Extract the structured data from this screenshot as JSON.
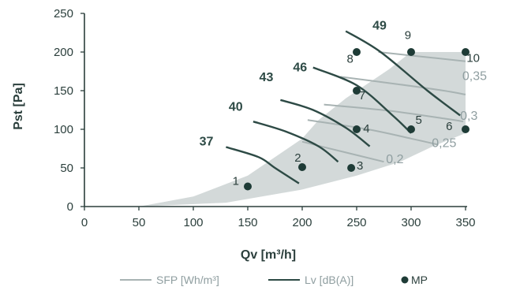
{
  "chart_data": {
    "type": "line",
    "xlabel": "Qv [m³/h]",
    "ylabel": "Pst [Pa]",
    "xlim": [
      0,
      350
    ],
    "ylim": [
      0,
      250
    ],
    "x_ticks": [
      "0",
      "50",
      "100",
      "150",
      "200",
      "250",
      "300",
      "350"
    ],
    "y_ticks": [
      "0",
      "50",
      "100",
      "150",
      "200",
      "250"
    ],
    "grid": false,
    "legend_position": "bottom",
    "operating_area": {
      "upper": [
        [
          50,
          0
        ],
        [
          100,
          13
        ],
        [
          150,
          40
        ],
        [
          200,
          88
        ],
        [
          215,
          112
        ],
        [
          240,
          140
        ],
        [
          280,
          178
        ],
        [
          300,
          200
        ],
        [
          350,
          200
        ]
      ],
      "lower": [
        [
          50,
          0
        ],
        [
          130,
          5
        ],
        [
          200,
          22
        ],
        [
          250,
          40
        ],
        [
          290,
          58
        ],
        [
          320,
          78
        ],
        [
          350,
          95
        ]
      ]
    },
    "sfp_lines": [
      {
        "label": "0,2",
        "points": [
          [
            200,
            84
          ],
          [
            240,
            70
          ],
          [
            275,
            58
          ]
        ]
      },
      {
        "label": "0,25",
        "points": [
          [
            205,
            112
          ],
          [
            260,
            100
          ],
          [
            300,
            88
          ],
          [
            325,
            80
          ]
        ]
      },
      {
        "label": "0,3",
        "points": [
          [
            220,
            132
          ],
          [
            280,
            124
          ],
          [
            330,
            114
          ],
          [
            348,
            110
          ]
        ]
      },
      {
        "label": "0,35",
        "points": [
          [
            235,
            168
          ],
          [
            290,
            158
          ],
          [
            330,
            150
          ],
          [
            350,
            145
          ]
        ]
      },
      {
        "label": "",
        "points": [
          [
            270,
            200
          ],
          [
            310,
            194
          ],
          [
            350,
            188
          ]
        ]
      }
    ],
    "sfp_label_positions": [
      [
        277,
        56
      ],
      [
        319,
        77
      ],
      [
        345,
        112
      ],
      [
        347,
        164
      ]
    ],
    "lv_lines": [
      {
        "label": "37",
        "points": [
          [
            130,
            77
          ],
          [
            160,
            64
          ],
          [
            175,
            50
          ],
          [
            197,
            30
          ]
        ]
      },
      {
        "label": "40",
        "points": [
          [
            155,
            110
          ],
          [
            185,
            97
          ],
          [
            215,
            78
          ],
          [
            233,
            58
          ]
        ]
      },
      {
        "label": "43",
        "points": [
          [
            180,
            138
          ],
          [
            210,
            125
          ],
          [
            240,
            102
          ],
          [
            262,
            78
          ]
        ]
      },
      {
        "label": "46",
        "points": [
          [
            210,
            180
          ],
          [
            250,
            157
          ],
          [
            283,
            118
          ],
          [
            300,
            95
          ]
        ]
      },
      {
        "label": "49",
        "points": [
          [
            240,
            227
          ],
          [
            272,
            200
          ],
          [
            315,
            150
          ],
          [
            345,
            118
          ]
        ]
      }
    ],
    "lv_label_positions": [
      [
        112,
        79
      ],
      [
        139,
        124
      ],
      [
        167,
        162
      ],
      [
        198,
        175
      ],
      [
        271,
        229
      ]
    ],
    "measurement_points": [
      {
        "label": "1",
        "x": 150,
        "y": 26
      },
      {
        "label": "2",
        "x": 200,
        "y": 51
      },
      {
        "label": "3",
        "x": 245,
        "y": 50
      },
      {
        "label": "4",
        "x": 250,
        "y": 100
      },
      {
        "label": "5",
        "x": 300,
        "y": 100
      },
      {
        "label": "6",
        "x": 350,
        "y": 100
      },
      {
        "label": "7",
        "x": 250,
        "y": 150
      },
      {
        "label": "8",
        "x": 250,
        "y": 200
      },
      {
        "label": "9",
        "x": 300,
        "y": 200
      },
      {
        "label": "10",
        "x": 350,
        "y": 200
      }
    ],
    "mp_label_positions": [
      [
        139,
        28
      ],
      [
        196,
        58
      ],
      [
        253,
        48
      ],
      [
        259,
        96
      ],
      [
        307,
        107
      ],
      [
        335,
        99
      ],
      [
        255,
        139
      ],
      [
        244,
        186
      ],
      [
        297,
        217
      ],
      [
        357,
        187
      ]
    ],
    "legend": [
      {
        "label": "SFP [Wh/m³]",
        "kind": "line",
        "color": "#a8b3b3"
      },
      {
        "label": "Lv [dB(A)]",
        "kind": "line",
        "color": "#2d4a45"
      },
      {
        "label": "MP",
        "kind": "dot",
        "color": "#1e3b36"
      }
    ],
    "colors": {
      "area": "#d3d9d9",
      "sfp": "#a8b3b3",
      "lv": "#2d4a45",
      "mp": "#1e3b36",
      "axis": "#2b3f3c"
    }
  }
}
